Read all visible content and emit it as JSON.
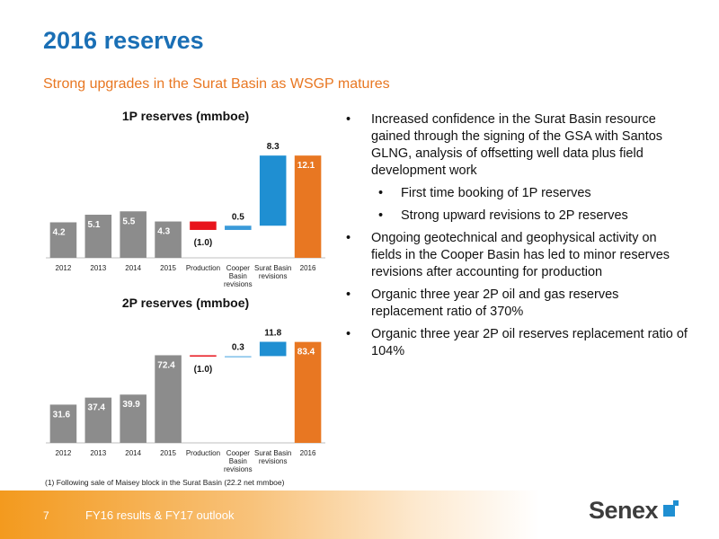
{
  "header": {
    "title": "2016 reserves",
    "subtitle": "Strong upgrades in the Surat Basin as WSGP matures"
  },
  "chart_data": [
    {
      "type": "waterfall",
      "title": "1P reserves (mmboe)",
      "categories": [
        "2012",
        "2013",
        "2014",
        "2015",
        "Production",
        "Cooper Basin revisions",
        "Surat Basin revisions",
        "2016"
      ],
      "values": [
        4.2,
        5.1,
        5.5,
        4.3,
        -1.0,
        0.5,
        8.3,
        12.1
      ],
      "value_labels": [
        "4.2",
        "5.1",
        "5.5",
        "4.3",
        "(1.0)",
        "0.5",
        "8.3",
        "12.1"
      ],
      "measure": [
        "absolute",
        "absolute",
        "absolute",
        "absolute",
        "relative",
        "relative",
        "relative",
        "total"
      ],
      "colors": [
        "#8c8c8c",
        "#8c8c8c",
        "#8c8c8c",
        "#8c8c8c",
        "#e8141c",
        "#3a9ad9",
        "#1f8fd2",
        "#e87722"
      ],
      "ylim": [
        0,
        13.5
      ]
    },
    {
      "type": "waterfall",
      "title": "2P reserves (mmboe)",
      "categories": [
        "2012",
        "2013",
        "2014",
        "2015",
        "Production",
        "Cooper Basin revisions",
        "Surat Basin revisions",
        "2016"
      ],
      "values": [
        31.6,
        37.4,
        39.9,
        72.4,
        -1.0,
        0.3,
        11.8,
        83.4
      ],
      "value_labels": [
        "31.6",
        "37.4",
        "39.9",
        "72.4",
        "(1.0)",
        "0.3",
        "11.8",
        "83.4"
      ],
      "measure": [
        "absolute",
        "absolute",
        "absolute",
        "absolute",
        "relative",
        "relative",
        "relative",
        "total"
      ],
      "colors": [
        "#8c8c8c",
        "#8c8c8c",
        "#8c8c8c",
        "#8c8c8c",
        "#e8141c",
        "#7fc0ea",
        "#1f8fd2",
        "#e87722"
      ],
      "ylim": [
        0,
        95
      ]
    }
  ],
  "bullets": [
    {
      "level": 1,
      "text": "Increased confidence in the Surat Basin resource gained through the signing of the GSA with Santos GLNG, analysis of offsetting well data plus field development work"
    },
    {
      "level": 2,
      "text": "First time booking of 1P reserves"
    },
    {
      "level": 2,
      "text": "Strong upward revisions to 2P reserves"
    },
    {
      "level": 1,
      "text": "Ongoing geotechnical and geophysical activity on fields in the Cooper Basin has led to minor reserves revisions after accounting for production"
    },
    {
      "level": 1,
      "text": "Organic three year 2P oil and gas reserves replacement ratio of 370%"
    },
    {
      "level": 1,
      "text": "Organic three year 2P oil reserves replacement ratio of 104%"
    }
  ],
  "footnote": "(1)   Following sale of Maisey block in the Surat Basin (22.2 net mmboe)",
  "footer": {
    "page": "7",
    "text": "FY16 results & FY17 outlook",
    "logo": "Senex"
  }
}
